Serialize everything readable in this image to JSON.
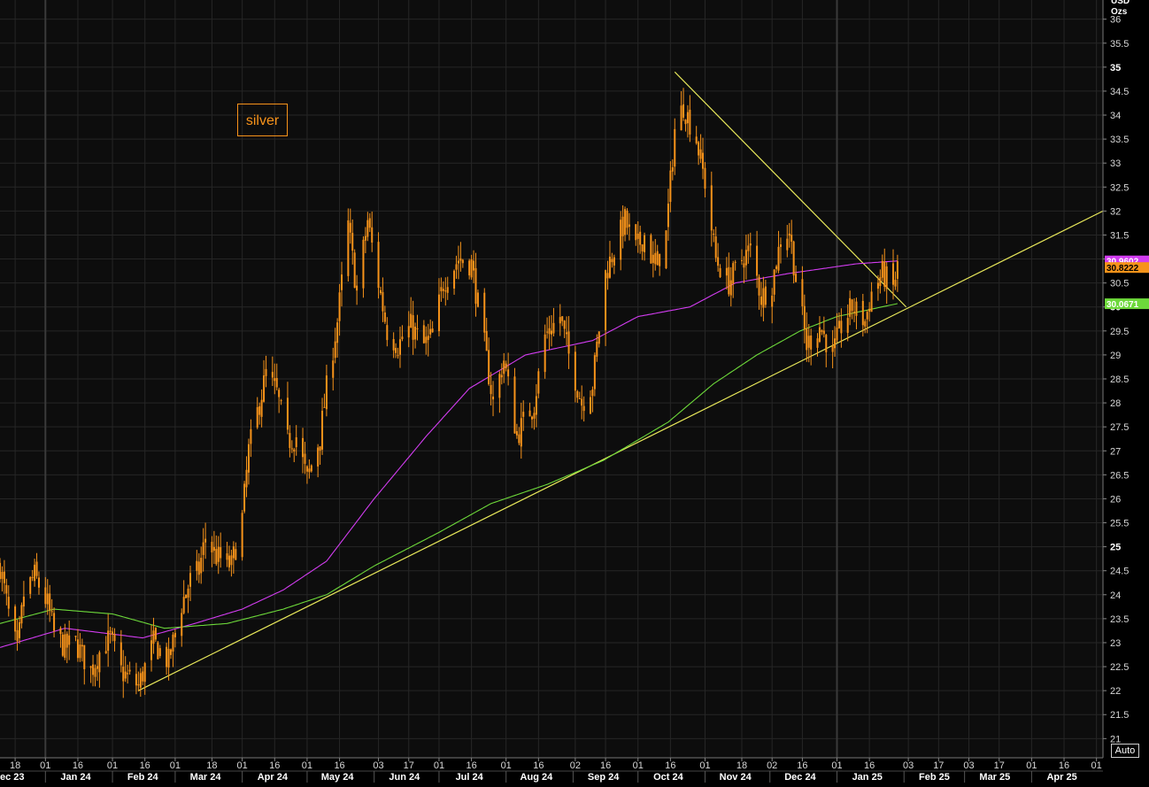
{
  "chart_data": {
    "type": "candlestick",
    "unit_label": [
      "USD",
      "Ozs"
    ],
    "annotation": "silver",
    "ylim": [
      20.6,
      36.4
    ],
    "y_ticks": [
      21,
      21.5,
      22,
      22.5,
      23,
      23.5,
      24,
      24.5,
      25,
      25.5,
      26,
      26.5,
      27,
      27.5,
      28,
      28.5,
      29,
      29.5,
      30,
      30.5,
      31,
      31.5,
      32,
      32.5,
      33,
      33.5,
      34,
      34.5,
      35,
      35.5,
      36
    ],
    "y_major_ticks": [
      25,
      30,
      35
    ],
    "x_range": [
      "2023-12-11",
      "2025-05-04"
    ],
    "x_day_ticks": [
      {
        "date": "2023-12-18",
        "label": "18"
      },
      {
        "date": "2024-01-01",
        "label": "01"
      },
      {
        "date": "2024-01-16",
        "label": "16"
      },
      {
        "date": "2024-02-01",
        "label": "01"
      },
      {
        "date": "2024-02-16",
        "label": "16"
      },
      {
        "date": "2024-03-01",
        "label": "01"
      },
      {
        "date": "2024-03-18",
        "label": "18"
      },
      {
        "date": "2024-04-01",
        "label": "01"
      },
      {
        "date": "2024-04-16",
        "label": "16"
      },
      {
        "date": "2024-05-01",
        "label": "01"
      },
      {
        "date": "2024-05-16",
        "label": "16"
      },
      {
        "date": "2024-06-03",
        "label": "03"
      },
      {
        "date": "2024-06-17",
        "label": "17"
      },
      {
        "date": "2024-07-01",
        "label": "01"
      },
      {
        "date": "2024-07-16",
        "label": "16"
      },
      {
        "date": "2024-08-01",
        "label": "01"
      },
      {
        "date": "2024-08-16",
        "label": "16"
      },
      {
        "date": "2024-09-02",
        "label": "02"
      },
      {
        "date": "2024-09-16",
        "label": "16"
      },
      {
        "date": "2024-10-01",
        "label": "01"
      },
      {
        "date": "2024-10-16",
        "label": "16"
      },
      {
        "date": "2024-11-01",
        "label": "01"
      },
      {
        "date": "2024-11-18",
        "label": "18"
      },
      {
        "date": "2024-12-02",
        "label": "02"
      },
      {
        "date": "2024-12-16",
        "label": "16"
      },
      {
        "date": "2025-01-01",
        "label": "01"
      },
      {
        "date": "2025-01-16",
        "label": "16"
      },
      {
        "date": "2025-02-03",
        "label": "03"
      },
      {
        "date": "2025-02-17",
        "label": "17"
      },
      {
        "date": "2025-03-03",
        "label": "03"
      },
      {
        "date": "2025-03-17",
        "label": "17"
      },
      {
        "date": "2025-04-01",
        "label": "01"
      },
      {
        "date": "2025-04-16",
        "label": "16"
      },
      {
        "date": "2025-05-01",
        "label": "01"
      }
    ],
    "x_month_labels": [
      {
        "date": "2023-12-15",
        "label": "Dec 23"
      },
      {
        "date": "2024-01-15",
        "label": "Jan 24"
      },
      {
        "date": "2024-02-15",
        "label": "Feb 24"
      },
      {
        "date": "2024-03-15",
        "label": "Mar 24"
      },
      {
        "date": "2024-04-15",
        "label": "Apr 24"
      },
      {
        "date": "2024-05-15",
        "label": "May 24"
      },
      {
        "date": "2024-06-15",
        "label": "Jun 24"
      },
      {
        "date": "2024-07-15",
        "label": "Jul 24"
      },
      {
        "date": "2024-08-15",
        "label": "Aug 24"
      },
      {
        "date": "2024-09-15",
        "label": "Sep 24"
      },
      {
        "date": "2024-10-15",
        "label": "Oct 24"
      },
      {
        "date": "2024-11-15",
        "label": "Nov 24"
      },
      {
        "date": "2024-12-15",
        "label": "Dec 24"
      },
      {
        "date": "2025-01-15",
        "label": "Jan 25"
      },
      {
        "date": "2025-02-15",
        "label": "Feb 25"
      },
      {
        "date": "2025-03-15",
        "label": "Mar 25"
      },
      {
        "date": "2025-04-15",
        "label": "Apr 25"
      }
    ],
    "year_dividers": [
      "2024-01-01",
      "2025-01-01"
    ],
    "price_anchors": [
      [
        "2023-12-11",
        24.6
      ],
      [
        "2023-12-15",
        23.6
      ],
      [
        "2023-12-19",
        22.8
      ],
      [
        "2023-12-22",
        24.0
      ],
      [
        "2023-12-27",
        24.4
      ],
      [
        "2024-01-02",
        23.8
      ],
      [
        "2024-01-05",
        23.2
      ],
      [
        "2024-01-10",
        22.9
      ],
      [
        "2024-01-15",
        23.0
      ],
      [
        "2024-01-22",
        22.4
      ],
      [
        "2024-01-26",
        22.8
      ],
      [
        "2024-01-31",
        23.1
      ],
      [
        "2024-02-05",
        22.4
      ],
      [
        "2024-02-13",
        22.1
      ],
      [
        "2024-02-20",
        23.0
      ],
      [
        "2024-02-27",
        22.6
      ],
      [
        "2024-03-04",
        23.8
      ],
      [
        "2024-03-08",
        24.3
      ],
      [
        "2024-03-12",
        24.5
      ],
      [
        "2024-03-15",
        25.2
      ],
      [
        "2024-03-20",
        24.8
      ],
      [
        "2024-03-27",
        24.6
      ],
      [
        "2024-04-01",
        25.6
      ],
      [
        "2024-04-04",
        27.0
      ],
      [
        "2024-04-09",
        28.0
      ],
      [
        "2024-04-12",
        28.6
      ],
      [
        "2024-04-17",
        28.2
      ],
      [
        "2024-04-22",
        27.2
      ],
      [
        "2024-04-26",
        27.3
      ],
      [
        "2024-05-01",
        26.4
      ],
      [
        "2024-05-07",
        27.3
      ],
      [
        "2024-05-10",
        28.3
      ],
      [
        "2024-05-15",
        29.7
      ],
      [
        "2024-05-20",
        31.7
      ],
      [
        "2024-05-24",
        30.3
      ],
      [
        "2024-05-29",
        31.8
      ],
      [
        "2024-06-03",
        30.5
      ],
      [
        "2024-06-07",
        29.5
      ],
      [
        "2024-06-12",
        29.2
      ],
      [
        "2024-06-18",
        29.6
      ],
      [
        "2024-06-24",
        29.2
      ],
      [
        "2024-06-28",
        29.4
      ],
      [
        "2024-07-03",
        30.5
      ],
      [
        "2024-07-10",
        31.0
      ],
      [
        "2024-07-16",
        30.9
      ],
      [
        "2024-07-22",
        29.2
      ],
      [
        "2024-07-26",
        28.0
      ],
      [
        "2024-07-31",
        28.9
      ],
      [
        "2024-08-06",
        27.3
      ],
      [
        "2024-08-09",
        27.6
      ],
      [
        "2024-08-14",
        28.0
      ],
      [
        "2024-08-19",
        29.4
      ],
      [
        "2024-08-26",
        29.8
      ],
      [
        "2024-08-30",
        29.0
      ],
      [
        "2024-09-05",
        28.0
      ],
      [
        "2024-09-10",
        28.4
      ],
      [
        "2024-09-16",
        30.7
      ],
      [
        "2024-09-20",
        31.2
      ],
      [
        "2024-09-25",
        31.8
      ],
      [
        "2024-09-30",
        31.2
      ],
      [
        "2024-10-04",
        31.5
      ],
      [
        "2024-10-09",
        30.8
      ],
      [
        "2024-10-14",
        31.5
      ],
      [
        "2024-10-18",
        33.7
      ],
      [
        "2024-10-22",
        34.2
      ],
      [
        "2024-10-28",
        33.5
      ],
      [
        "2024-11-01",
        32.6
      ],
      [
        "2024-11-06",
        31.0
      ],
      [
        "2024-11-12",
        30.5
      ],
      [
        "2024-11-18",
        31.0
      ],
      [
        "2024-11-22",
        31.2
      ],
      [
        "2024-11-27",
        30.2
      ],
      [
        "2024-12-02",
        30.5
      ],
      [
        "2024-12-06",
        31.4
      ],
      [
        "2024-12-10",
        31.6
      ],
      [
        "2024-12-13",
        30.6
      ],
      [
        "2024-12-18",
        29.2
      ],
      [
        "2024-12-24",
        29.6
      ],
      [
        "2024-12-30",
        29.0
      ],
      [
        "2025-01-03",
        29.6
      ],
      [
        "2025-01-08",
        30.0
      ],
      [
        "2025-01-14",
        29.7
      ],
      [
        "2025-01-17",
        30.3
      ],
      [
        "2025-01-22",
        30.7
      ],
      [
        "2025-01-27",
        30.4
      ],
      [
        "2025-01-29",
        30.82
      ]
    ],
    "ma_series": [
      {
        "color": "#d23cf0",
        "anchors": [
          [
            "2023-12-11",
            22.9
          ],
          [
            "2024-01-10",
            23.3
          ],
          [
            "2024-02-15",
            23.1
          ],
          [
            "2024-03-10",
            23.4
          ],
          [
            "2024-04-01",
            23.7
          ],
          [
            "2024-04-20",
            24.1
          ],
          [
            "2024-05-10",
            24.7
          ],
          [
            "2024-06-01",
            26.0
          ],
          [
            "2024-06-25",
            27.3
          ],
          [
            "2024-07-15",
            28.3
          ],
          [
            "2024-08-10",
            29.0
          ],
          [
            "2024-09-10",
            29.3
          ],
          [
            "2024-10-01",
            29.8
          ],
          [
            "2024-10-25",
            30.0
          ],
          [
            "2024-11-15",
            30.5
          ],
          [
            "2024-12-10",
            30.7
          ],
          [
            "2025-01-10",
            30.9
          ],
          [
            "2025-01-29",
            30.96
          ]
        ],
        "last_value": "30.9602"
      },
      {
        "color": "#6dd93a",
        "anchors": [
          [
            "2023-12-11",
            23.4
          ],
          [
            "2024-01-05",
            23.7
          ],
          [
            "2024-02-01",
            23.6
          ],
          [
            "2024-02-25",
            23.3
          ],
          [
            "2024-03-25",
            23.4
          ],
          [
            "2024-04-20",
            23.7
          ],
          [
            "2024-05-10",
            24.0
          ],
          [
            "2024-06-01",
            24.6
          ],
          [
            "2024-07-01",
            25.3
          ],
          [
            "2024-07-25",
            25.9
          ],
          [
            "2024-08-20",
            26.3
          ],
          [
            "2024-09-15",
            26.8
          ],
          [
            "2024-10-15",
            27.6
          ],
          [
            "2024-11-05",
            28.4
          ],
          [
            "2024-11-25",
            29.0
          ],
          [
            "2024-12-15",
            29.5
          ],
          [
            "2025-01-01",
            29.8
          ],
          [
            "2025-01-29",
            30.07
          ]
        ],
        "last_value": "30.0671"
      }
    ],
    "trend_lines": [
      {
        "color": "#e8e85a",
        "from": [
          "2024-02-13",
          22.0
        ],
        "to": [
          "2025-05-04",
          32.0
        ]
      },
      {
        "color": "#e8e85a",
        "from": [
          "2024-10-18",
          34.9
        ],
        "to": [
          "2025-02-02",
          30.0
        ]
      }
    ],
    "price_color": "#f7931a",
    "last_price": "30.8222",
    "auto_button": "Auto"
  }
}
